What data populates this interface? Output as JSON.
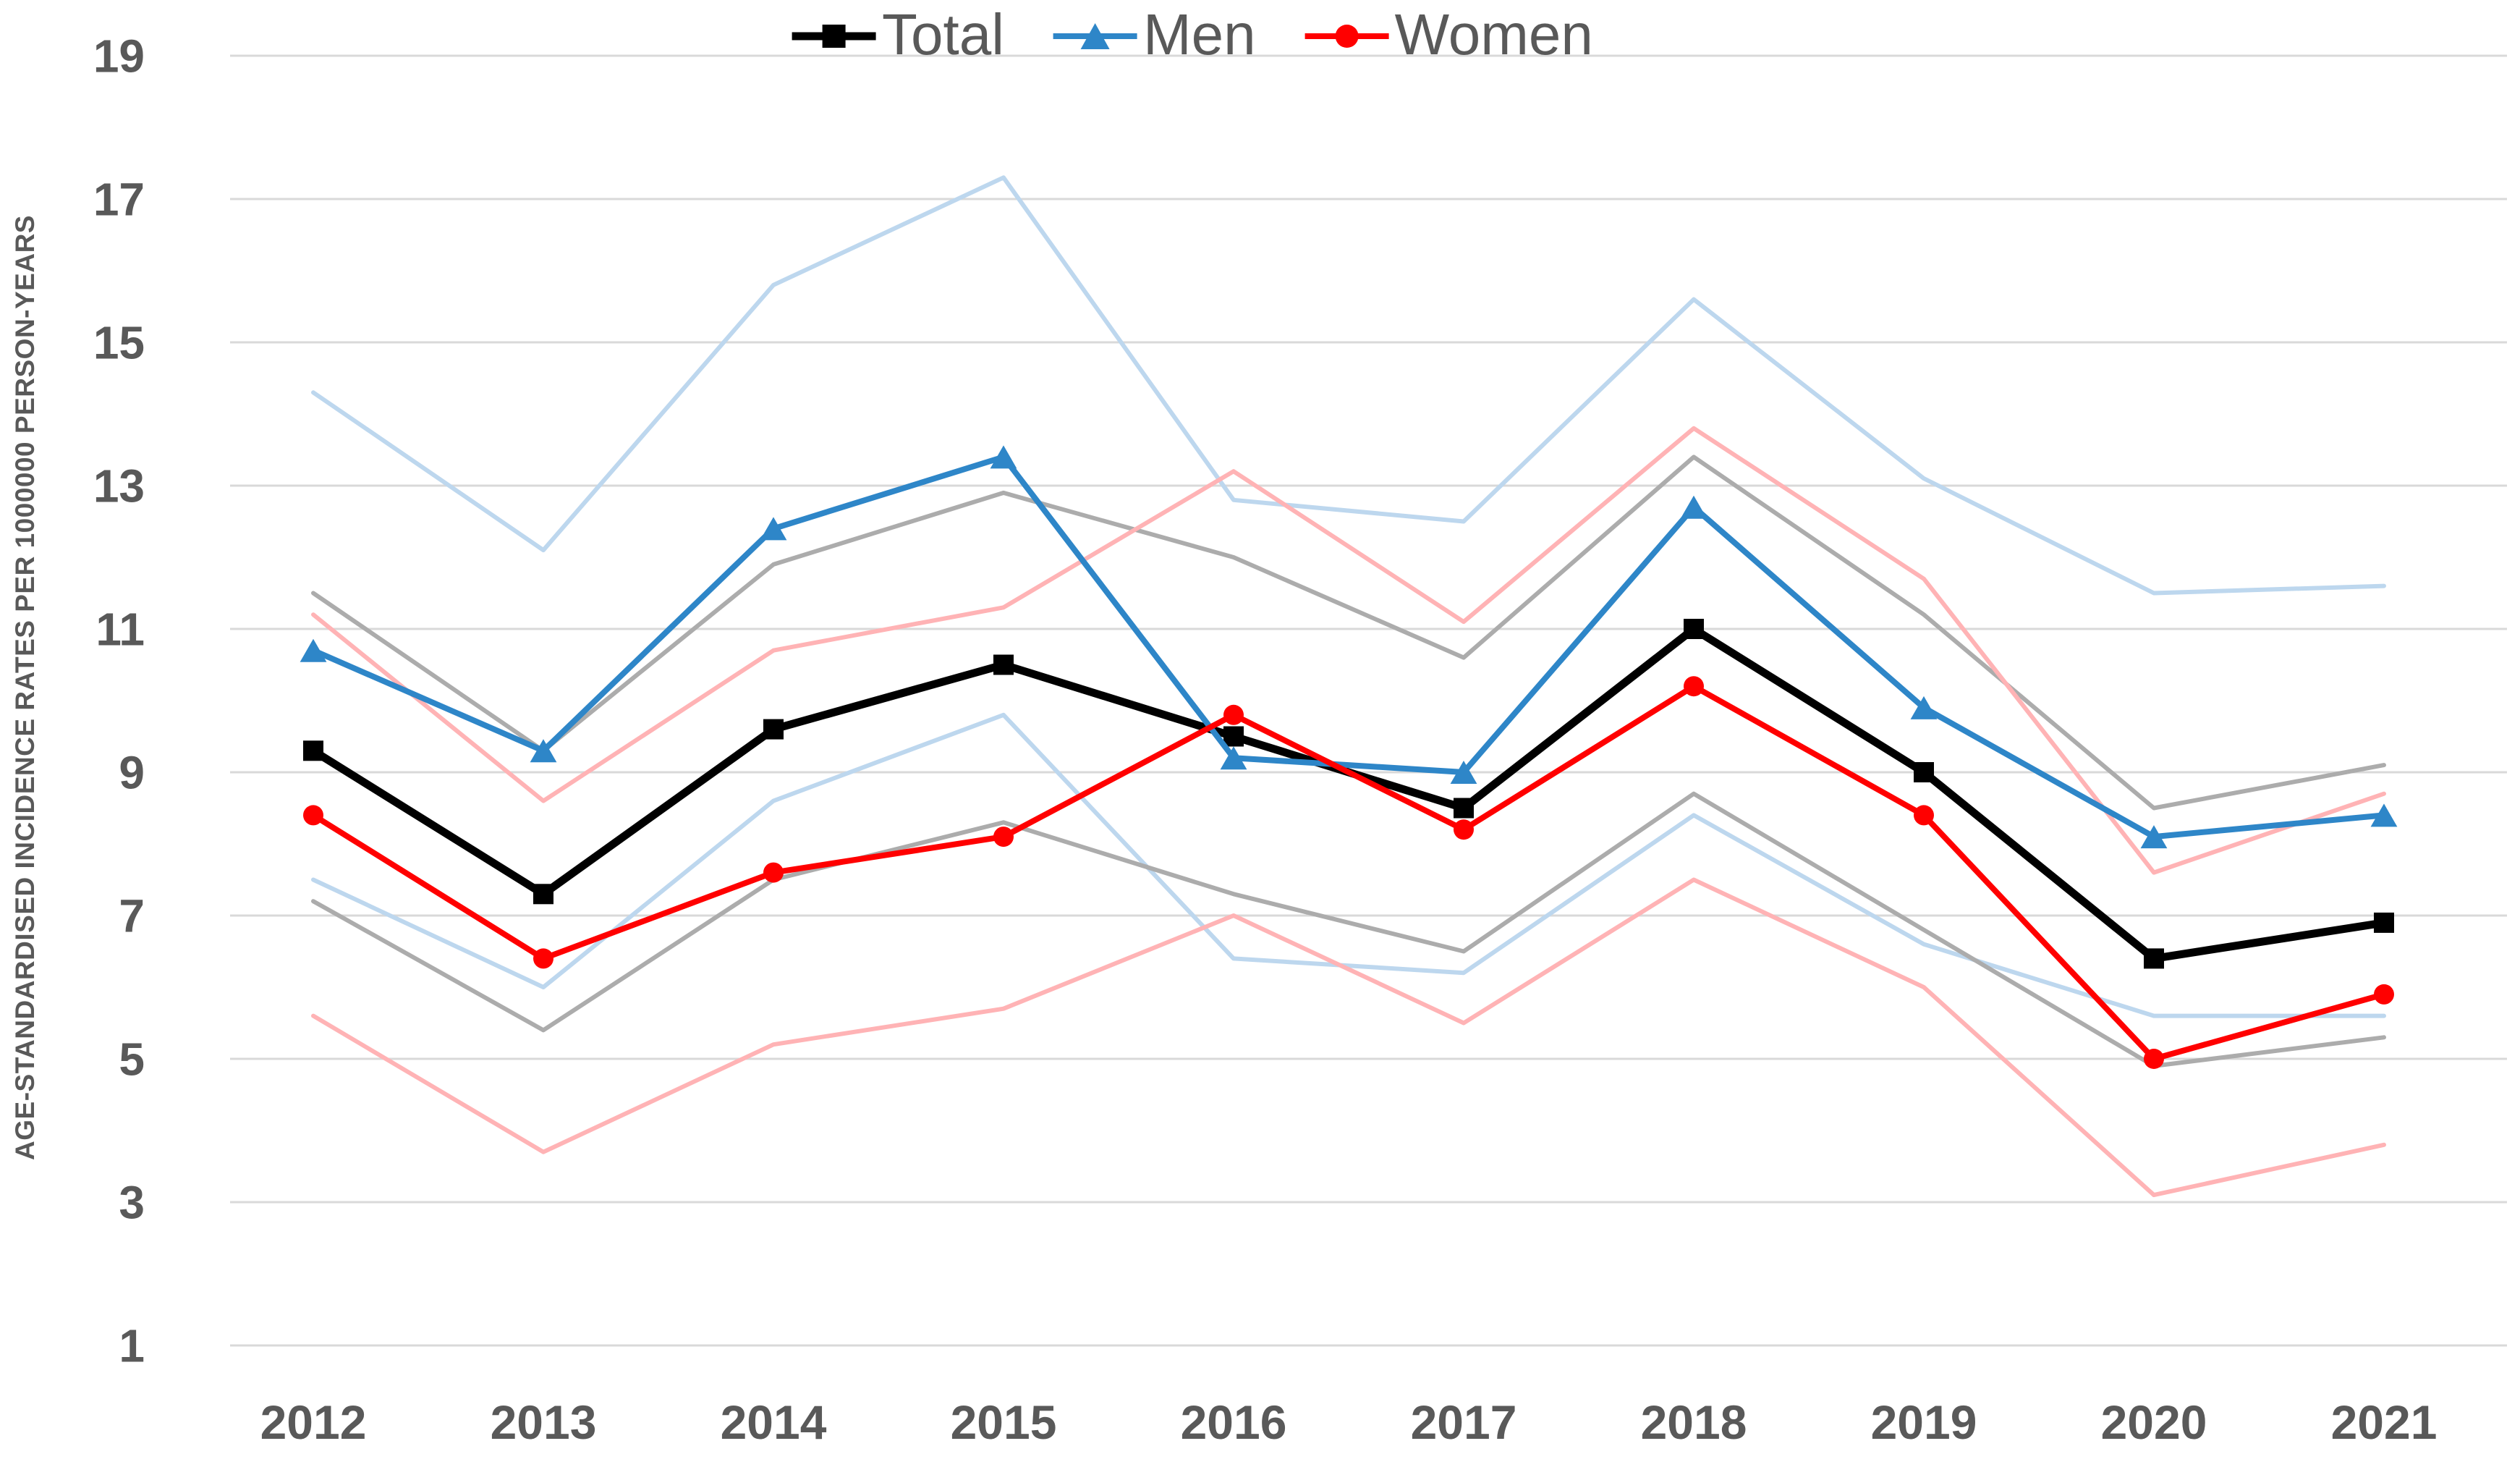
{
  "chart_data": {
    "type": "line",
    "title": "",
    "xlabel": "",
    "ylabel": "AGE-STANDARDISED INCIDENCE RATES PER 1000000 PERSON-YEARS",
    "categories": [
      "2012",
      "2013",
      "2014",
      "2015",
      "2016",
      "2017",
      "2018",
      "2019",
      "2020",
      "2021"
    ],
    "ylim": [
      1,
      19
    ],
    "yticks": [
      1,
      3,
      5,
      7,
      9,
      11,
      13,
      15,
      17,
      19
    ],
    "grid": "horizontal-only",
    "legend_position": "top-center",
    "series": [
      {
        "name": "Men upper CI",
        "in_legend": false,
        "color": "#BDD7EE",
        "width": 6,
        "marker": "none",
        "values": [
          14.3,
          12.1,
          15.8,
          17.3,
          12.8,
          12.5,
          15.6,
          13.1,
          11.5,
          11.6
        ]
      },
      {
        "name": "Men lower CI",
        "in_legend": false,
        "color": "#BDD7EE",
        "width": 6,
        "marker": "none",
        "values": [
          7.5,
          6.0,
          8.6,
          9.8,
          6.4,
          6.2,
          8.4,
          6.6,
          5.6,
          5.6
        ]
      },
      {
        "name": "Total upper CI",
        "in_legend": false,
        "color": "#ACACAC",
        "width": 6,
        "marker": "none",
        "values": [
          11.5,
          9.3,
          11.9,
          12.9,
          12.0,
          10.6,
          13.4,
          11.2,
          8.5,
          9.1
        ]
      },
      {
        "name": "Total lower CI",
        "in_legend": false,
        "color": "#ACACAC",
        "width": 6,
        "marker": "none",
        "values": [
          7.2,
          5.4,
          7.5,
          8.3,
          7.3,
          6.5,
          8.7,
          6.8,
          4.9,
          5.3
        ]
      },
      {
        "name": "Women upper CI",
        "in_legend": false,
        "color": "#FFB3B5",
        "width": 6,
        "marker": "none",
        "values": [
          11.2,
          8.6,
          10.7,
          11.3,
          13.2,
          11.1,
          13.8,
          11.7,
          7.6,
          8.7
        ]
      },
      {
        "name": "Women lower CI",
        "in_legend": false,
        "color": "#FFB3B5",
        "width": 6,
        "marker": "none",
        "values": [
          5.6,
          3.7,
          5.2,
          5.7,
          7.0,
          5.5,
          7.5,
          6.0,
          3.1,
          3.8
        ]
      },
      {
        "name": "Total",
        "in_legend": true,
        "color": "#000000",
        "width": 11,
        "marker": "square",
        "values": [
          9.3,
          7.3,
          9.6,
          10.5,
          9.5,
          8.5,
          11.0,
          9.0,
          6.4,
          6.9
        ]
      },
      {
        "name": "Men",
        "in_legend": true,
        "color": "#2E86C8",
        "width": 8,
        "marker": "triangle",
        "values": [
          10.7,
          9.3,
          12.4,
          13.4,
          9.2,
          9.0,
          12.7,
          9.9,
          8.1,
          8.4
        ]
      },
      {
        "name": "Women",
        "in_legend": true,
        "color": "#FF0000",
        "width": 8,
        "marker": "circle",
        "values": [
          8.4,
          6.4,
          7.6,
          8.1,
          9.8,
          8.2,
          10.2,
          8.4,
          5.0,
          5.9
        ]
      }
    ]
  },
  "colors": {
    "axis_text": "#595959",
    "gridline": "#D9D9D9",
    "background": "#FFFFFF"
  }
}
